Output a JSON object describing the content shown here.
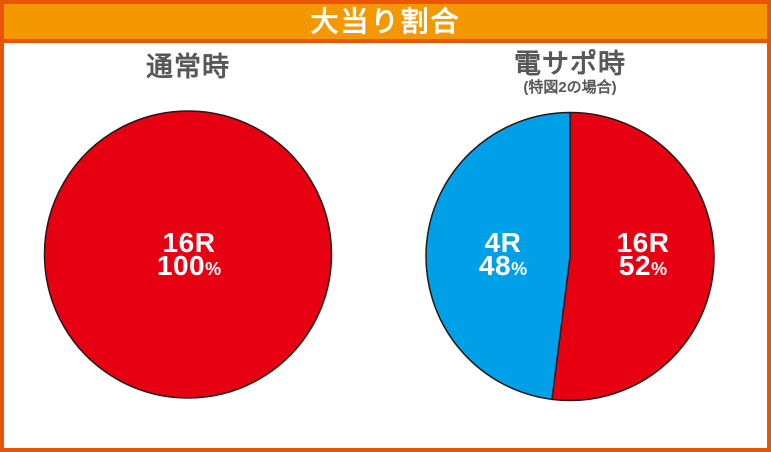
{
  "panel": {
    "title": "大当り割合"
  },
  "colors": {
    "border_orange": "#e95506",
    "header_orange": "#f39800",
    "title_text": "#ffffff",
    "heading_gray": "#595757",
    "pie_red": "#e60012",
    "pie_blue": "#00a0e9",
    "pie_outline": "#231815",
    "pie_label_text": "#ffffff"
  },
  "chart_data": [
    {
      "type": "pie",
      "title": "通常時",
      "subtitle": "",
      "direction": "clockwise",
      "start_angle_deg": 0,
      "legend": "none",
      "slices": [
        {
          "label": "16R",
          "value": 100,
          "unit": "%",
          "color": "#e60012"
        }
      ]
    },
    {
      "type": "pie",
      "title": "電サポ時",
      "subtitle": "(特図2の場合)",
      "direction": "clockwise",
      "start_angle_deg": 0,
      "legend": "none",
      "slices": [
        {
          "label": "16R",
          "value": 52,
          "unit": "%",
          "color": "#e60012"
        },
        {
          "label": "4R",
          "value": 48,
          "unit": "%",
          "color": "#00a0e9"
        }
      ]
    }
  ]
}
